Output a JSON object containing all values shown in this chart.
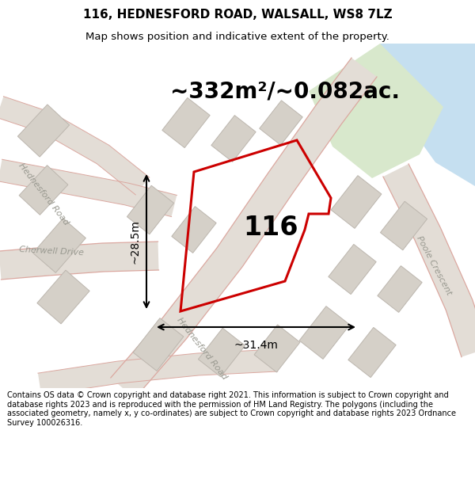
{
  "title": "116, HEDNESFORD ROAD, WALSALL, WS8 7LZ",
  "subtitle": "Map shows position and indicative extent of the property.",
  "area_label": "~332m²/~0.082ac.",
  "number_label": "116",
  "dim_width": "~31.4m",
  "dim_height": "~28.5m",
  "footer": "Contains OS data © Crown copyright and database right 2021. This information is subject to Crown copyright and database rights 2023 and is reproduced with the permission of HM Land Registry. The polygons (including the associated geometry, namely x, y co-ordinates) are subject to Crown copyright and database rights 2023 Ordnance Survey 100026316.",
  "bg_color": "#eeebe6",
  "road_fill": "#e3ddd6",
  "road_edge": "#dba8a0",
  "plot_color": "#cc0000",
  "water_color": "#c5dff0",
  "green_color": "#d8e8cc",
  "bldg_fill": "#d5d0c8",
  "bldg_edge": "#bcb6ae",
  "title_fontsize": 11,
  "subtitle_fontsize": 9.5,
  "area_fontsize": 20,
  "number_fontsize": 24,
  "footer_fontsize": 7.0,
  "road_label_fontsize": 8,
  "dim_fontsize": 10
}
